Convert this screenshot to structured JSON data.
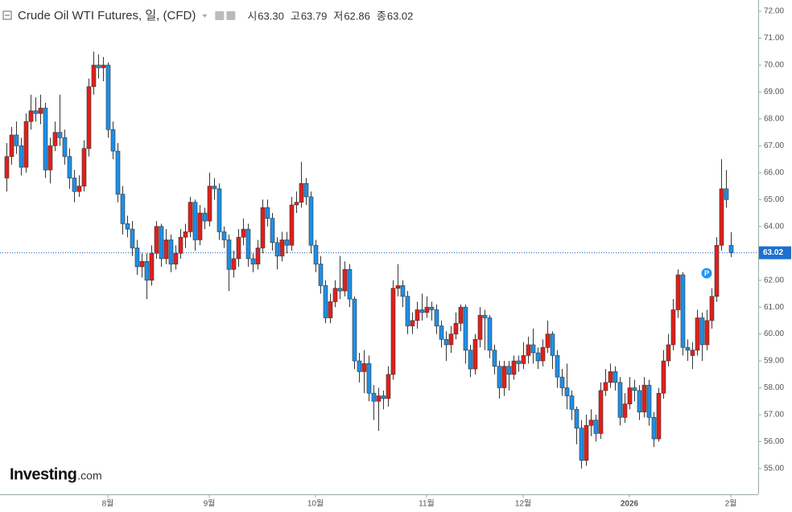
{
  "chart_data": {
    "type": "candlestick",
    "title": "Crude Oil WTI Futures, 일, (CFD)",
    "ohlc": [
      {
        "label": "시",
        "value": "63.30"
      },
      {
        "label": "고",
        "value": "63.79"
      },
      {
        "label": "저",
        "value": "62.86"
      },
      {
        "label": "종",
        "value": "63.02"
      }
    ],
    "last_price_label": "63.02",
    "last_price": 63.02,
    "marker": {
      "label": "P",
      "x": 145,
      "y": 62.26
    },
    "watermark": [
      "Investing",
      ".com"
    ],
    "up_color": "#e0201b",
    "down_color": "#1e8fe6",
    "open": [
      65.8,
      66.6,
      67.4,
      67.0,
      66.2,
      67.9,
      68.3,
      68.2,
      68.4,
      66.1,
      67.0,
      67.5,
      67.3,
      66.6,
      65.8,
      65.3,
      65.5,
      66.9,
      69.2,
      70.0,
      69.9,
      70.0,
      67.6,
      66.8,
      65.2,
      64.1,
      63.9,
      63.2,
      62.5,
      62.7,
      62.0,
      63.0,
      64.0,
      62.8,
      63.5,
      62.6,
      63.0,
      63.6,
      63.8,
      64.9,
      63.5,
      64.5,
      64.2,
      65.5,
      65.4,
      63.8,
      63.5,
      62.4,
      62.8,
      63.6,
      63.9,
      62.8,
      62.6,
      63.2,
      64.7,
      64.3,
      63.4,
      62.9,
      63.5,
      63.3,
      64.8,
      64.9,
      65.6,
      65.1,
      63.3,
      62.6,
      61.8,
      60.6,
      61.2,
      61.7,
      61.6,
      62.4,
      61.3,
      59.0,
      58.6,
      58.9,
      57.8,
      57.5,
      57.7,
      57.6,
      58.5,
      61.7,
      61.8,
      61.4,
      60.3,
      60.5,
      60.9,
      60.8,
      61.0,
      60.9,
      60.3,
      59.8,
      59.6,
      60.0,
      60.4,
      61.0,
      59.4,
      58.7,
      59.8,
      60.7,
      60.6,
      59.4,
      58.8,
      58.0,
      58.8,
      58.5,
      59.0,
      58.9,
      59.2,
      59.6,
      59.3,
      59.0,
      59.5,
      60.0,
      59.2,
      58.4,
      58.0,
      57.7,
      57.2,
      56.5,
      55.3,
      56.6,
      56.8,
      56.3,
      57.9,
      58.2,
      58.6,
      58.2,
      56.9,
      57.4,
      58.0,
      57.9,
      57.1,
      58.1,
      56.9,
      56.1,
      57.8,
      59.0,
      59.6,
      60.9,
      62.2,
      59.5,
      59.2,
      59.4,
      60.6,
      59.6,
      60.5,
      61.4,
      63.3,
      65.4,
      63.3
    ],
    "high": [
      67.1,
      67.7,
      67.9,
      67.3,
      68.2,
      68.9,
      68.8,
      68.9,
      68.6,
      67.3,
      67.9,
      68.9,
      67.6,
      66.9,
      66.1,
      65.9,
      67.2,
      69.5,
      70.5,
      70.4,
      70.3,
      70.1,
      67.9,
      67.1,
      65.5,
      64.4,
      64.2,
      63.5,
      63.0,
      63.0,
      63.3,
      64.2,
      64.1,
      63.9,
      63.7,
      63.3,
      63.9,
      64.1,
      65.1,
      65.0,
      64.8,
      64.7,
      66.0,
      65.8,
      65.6,
      64.0,
      63.7,
      63.1,
      63.9,
      64.3,
      64.1,
      63.0,
      63.5,
      65.0,
      65.0,
      64.5,
      63.6,
      63.8,
      63.8,
      65.1,
      65.3,
      66.4,
      65.8,
      65.3,
      63.5,
      62.9,
      62.0,
      61.5,
      62.0,
      62.9,
      62.7,
      62.6,
      61.4,
      59.3,
      59.4,
      59.2,
      58.1,
      58.0,
      57.9,
      58.8,
      62.0,
      62.6,
      62.0,
      61.6,
      60.8,
      61.2,
      61.5,
      61.4,
      61.2,
      61.1,
      60.5,
      60.1,
      60.3,
      60.8,
      61.1,
      61.1,
      59.6,
      60.0,
      61.0,
      60.9,
      60.7,
      59.6,
      59.0,
      59.0,
      59.0,
      59.2,
      59.2,
      59.7,
      59.9,
      60.2,
      59.5,
      59.8,
      60.5,
      60.1,
      59.4,
      58.7,
      58.9,
      57.9,
      57.3,
      56.8,
      57.0,
      57.2,
      57.0,
      58.2,
      58.7,
      58.9,
      58.8,
      58.4,
      57.8,
      58.4,
      58.3,
      58.1,
      58.4,
      58.3,
      57.1,
      58.0,
      59.4,
      60.0,
      61.3,
      62.4,
      62.3,
      59.8,
      59.7,
      60.9,
      60.8,
      60.9,
      61.7,
      63.6,
      66.5,
      66.1,
      63.79
    ],
    "low": [
      65.3,
      66.3,
      66.7,
      65.9,
      66.0,
      67.6,
      67.9,
      67.8,
      65.8,
      65.6,
      66.8,
      67.0,
      66.3,
      65.4,
      64.9,
      65.1,
      65.3,
      66.6,
      68.9,
      69.5,
      69.4,
      67.3,
      66.5,
      64.9,
      63.7,
      63.6,
      62.9,
      62.2,
      62.1,
      61.3,
      61.8,
      62.8,
      62.5,
      62.6,
      62.3,
      62.4,
      62.8,
      63.2,
      63.6,
      63.1,
      63.3,
      63.9,
      64.0,
      65.0,
      63.5,
      63.2,
      61.6,
      62.1,
      62.5,
      63.3,
      62.5,
      62.3,
      62.4,
      63.0,
      64.0,
      63.1,
      62.4,
      62.7,
      63.0,
      63.1,
      64.5,
      64.7,
      64.8,
      63.0,
      62.3,
      61.5,
      60.4,
      60.4,
      61.0,
      61.3,
      61.4,
      61.0,
      58.7,
      58.2,
      57.8,
      57.5,
      56.8,
      56.4,
      57.2,
      57.3,
      58.3,
      61.4,
      61.0,
      60.0,
      60.0,
      60.2,
      60.5,
      60.6,
      60.5,
      60.0,
      59.5,
      59.0,
      59.3,
      59.8,
      60.1,
      58.9,
      58.4,
      58.5,
      59.5,
      59.4,
      59.1,
      58.5,
      57.6,
      57.7,
      57.9,
      58.3,
      58.6,
      58.7,
      58.9,
      58.9,
      58.7,
      58.8,
      59.3,
      58.7,
      58.0,
      57.7,
      57.2,
      56.8,
      55.9,
      55.0,
      55.1,
      56.2,
      56.0,
      56.1,
      57.7,
      58.0,
      57.9,
      56.6,
      56.7,
      57.2,
      57.5,
      56.8,
      56.9,
      56.6,
      55.8,
      56.0,
      57.6,
      58.8,
      59.4,
      60.6,
      59.2,
      59.0,
      58.7,
      59.2,
      59.0,
      59.4,
      60.2,
      61.2,
      63.1,
      64.7,
      62.86
    ],
    "close": [
      66.6,
      67.4,
      67.0,
      66.2,
      67.9,
      68.3,
      68.2,
      68.4,
      66.1,
      67.0,
      67.5,
      67.3,
      66.6,
      65.8,
      65.3,
      65.5,
      66.9,
      69.2,
      70.0,
      69.9,
      70.0,
      67.6,
      66.8,
      65.2,
      64.1,
      63.9,
      63.2,
      62.5,
      62.7,
      62.0,
      63.0,
      64.0,
      62.8,
      63.5,
      62.6,
      63.0,
      63.6,
      63.8,
      64.9,
      63.5,
      64.5,
      64.2,
      65.5,
      65.4,
      63.8,
      63.5,
      62.4,
      62.8,
      63.6,
      63.9,
      62.8,
      62.6,
      63.2,
      64.7,
      64.3,
      63.4,
      62.9,
      63.5,
      63.3,
      64.8,
      64.9,
      65.6,
      65.1,
      63.3,
      62.6,
      61.8,
      60.6,
      61.2,
      61.7,
      61.6,
      62.4,
      61.3,
      59.0,
      58.6,
      58.9,
      57.8,
      57.5,
      57.7,
      57.6,
      58.5,
      61.7,
      61.8,
      61.4,
      60.3,
      60.5,
      60.9,
      60.8,
      61.0,
      60.9,
      60.3,
      59.8,
      59.6,
      60.0,
      60.4,
      61.0,
      59.4,
      58.7,
      59.8,
      60.7,
      60.6,
      59.4,
      58.8,
      58.0,
      58.8,
      58.5,
      59.0,
      58.9,
      59.2,
      59.6,
      59.3,
      59.0,
      59.5,
      60.0,
      59.2,
      58.4,
      58.0,
      57.7,
      57.2,
      56.5,
      55.3,
      56.6,
      56.8,
      56.3,
      57.9,
      58.2,
      58.6,
      58.2,
      56.9,
      57.4,
      58.0,
      57.9,
      57.1,
      58.1,
      56.9,
      56.1,
      57.8,
      59.0,
      59.6,
      60.9,
      62.2,
      59.5,
      59.4,
      59.4,
      60.6,
      59.6,
      60.5,
      61.4,
      63.3,
      65.4,
      65.0,
      63.02
    ],
    "xlim": [
      -1.33,
      155.67
    ],
    "xticks": [
      {
        "value": 21,
        "label": "8월"
      },
      {
        "value": 42,
        "label": "9월"
      },
      {
        "value": 64,
        "label": "10월"
      },
      {
        "value": 87,
        "label": "11월"
      },
      {
        "value": 107,
        "label": "12월"
      },
      {
        "value": 129,
        "label": "2026"
      },
      {
        "value": 150,
        "label": "2월"
      }
    ],
    "ylim": [
      54.04,
      72.42
    ],
    "yticks": [
      {
        "value": 55,
        "label": "55.00"
      },
      {
        "value": 56,
        "label": "56.00"
      },
      {
        "value": 57,
        "label": "57.00"
      },
      {
        "value": 58,
        "label": "58.00"
      },
      {
        "value": 59,
        "label": "59.00"
      },
      {
        "value": 60,
        "label": "60.00"
      },
      {
        "value": 61,
        "label": "61.00"
      },
      {
        "value": 62,
        "label": "62.00"
      },
      {
        "value": 63,
        "label": "63.00"
      },
      {
        "value": 64,
        "label": "64.00"
      },
      {
        "value": 65,
        "label": "65.00"
      },
      {
        "value": 66,
        "label": "66.00"
      },
      {
        "value": 67,
        "label": "67.00"
      },
      {
        "value": 68,
        "label": "68.00"
      },
      {
        "value": 69,
        "label": "69.00"
      },
      {
        "value": 70,
        "label": "70.00"
      },
      {
        "value": 71,
        "label": "71.00"
      },
      {
        "value": 72,
        "label": "72.00"
      }
    ]
  }
}
